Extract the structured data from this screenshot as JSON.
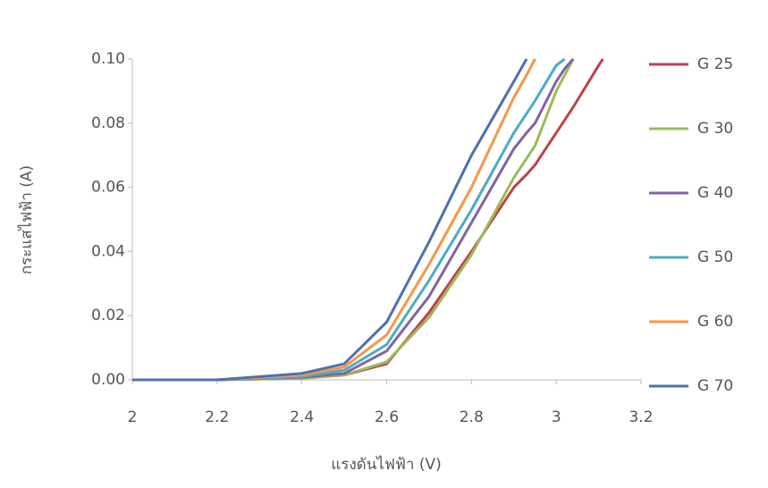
{
  "chart_data": {
    "type": "line",
    "x_label": "แรงดันไฟฟ้า (V)",
    "y_label": "กระแสไฟฟ้า (A)",
    "x": [
      2,
      2.2,
      2.4,
      2.5,
      2.6,
      2.7,
      2.8,
      2.9,
      2.93,
      2.95,
      3.0,
      3.02,
      3.04,
      3.1,
      3.11
    ],
    "series": [
      {
        "name": "G 25",
        "color": "#c0404a",
        "values": [
          0,
          0,
          0.0005,
          0.0015,
          0.005,
          0.021,
          0.04,
          0.06,
          0.064,
          0.067,
          0.077,
          0.081,
          0.085,
          0.098,
          0.1
        ]
      },
      {
        "name": "G 30",
        "color": "#9bbb59",
        "values": [
          0,
          0,
          0.0005,
          0.0015,
          0.0056,
          0.0195,
          0.039,
          0.063,
          0.069,
          0.073,
          0.09,
          0.095,
          0.1,
          null,
          null
        ]
      },
      {
        "name": "G 40",
        "color": "#8064a2",
        "values": [
          0,
          0,
          0.0008,
          0.002,
          0.009,
          0.026,
          0.049,
          0.072,
          0.077,
          0.08,
          0.093,
          0.097,
          0.1,
          null,
          null
        ]
      },
      {
        "name": "G 50",
        "color": "#4bacc6",
        "values": [
          0,
          0,
          0.001,
          0.003,
          0.011,
          0.031,
          0.053,
          0.077,
          0.083,
          0.087,
          0.098,
          0.1,
          null,
          null,
          null
        ]
      },
      {
        "name": "G 60",
        "color": "#f79646",
        "values": [
          0,
          0,
          0.0015,
          0.004,
          0.014,
          0.036,
          0.06,
          0.088,
          0.095,
          0.1,
          null,
          null,
          null,
          null,
          null
        ]
      },
      {
        "name": "G 70",
        "color": "#4f6fae",
        "values": [
          0,
          0,
          0.002,
          0.005,
          0.018,
          0.043,
          0.07,
          0.093,
          0.1,
          null,
          null,
          null,
          null,
          null,
          null
        ]
      }
    ],
    "xlim": [
      2,
      3.2
    ],
    "xticks": [
      2,
      2.2,
      2.4,
      2.6,
      2.8,
      3,
      3.2
    ],
    "ylim": [
      0,
      0.1
    ],
    "yticks": [
      {
        "value": 0,
        "label": "0.00"
      },
      {
        "value": 0.02,
        "label": "0.02"
      },
      {
        "value": 0.04,
        "label": "0.04"
      },
      {
        "value": 0.06,
        "label": "0.06"
      },
      {
        "value": 0.08,
        "label": "0.08"
      },
      {
        "value": 0.1,
        "label": "0.10"
      }
    ],
    "grid": false,
    "legend": "right"
  }
}
